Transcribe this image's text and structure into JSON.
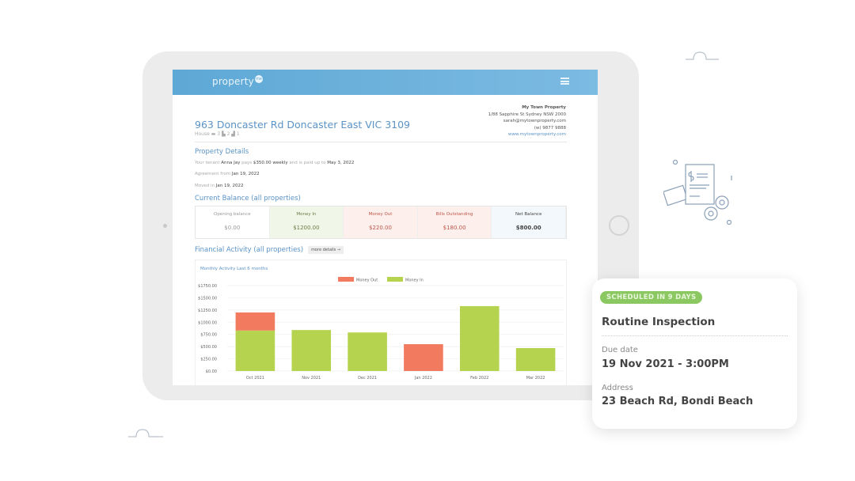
{
  "app": {
    "logo": "property",
    "logo_badge": "me"
  },
  "property": {
    "address": "963 Doncaster Rd Doncaster East VIC 3109",
    "type": "House",
    "beds": "3",
    "baths": "2",
    "cars": "1"
  },
  "agency": {
    "name": "My Town Property",
    "address": "1/88 Sapphire St Sydney NSW 2000",
    "email": "sarah@mytownproperty.com",
    "phone": "(w) 9877 9888",
    "website": "www.mytownproperty.com"
  },
  "details": {
    "heading": "Property Details",
    "t1": "Your tenant",
    "tenant": "Anna Jay",
    "t2": "pays",
    "rent": "$350.00 weekly",
    "t3": "and is paid up to",
    "paid_to": "May 3, 2022",
    "agreement_label": "Agreement from",
    "agreement": "Jan 19, 2022",
    "moved_label": "Moved in",
    "moved": "Jan 19, 2022"
  },
  "balance": {
    "heading": "Current Balance (all properties)",
    "cols": [
      {
        "label": "Opening balance",
        "value": "$0.00",
        "bg": "#ffffff",
        "color": "#999999"
      },
      {
        "label": "Money In",
        "value": "$1200.00",
        "bg": "#f1f7e8",
        "color": "#6b7a45"
      },
      {
        "label": "Money Out",
        "value": "$220.00",
        "bg": "#fcefec",
        "color": "#c0574a"
      },
      {
        "label": "Bills Outstanding",
        "value": "$180.00",
        "bg": "#fcefec",
        "color": "#c0574a"
      },
      {
        "label": "Net Balance",
        "value": "$800.00",
        "bg": "#f3f8fc",
        "color": "#444444"
      }
    ]
  },
  "activity": {
    "heading": "Financial Activity (all properties)",
    "more": "more details →"
  },
  "chart_data": {
    "type": "bar",
    "stacked": true,
    "title": "Monthly Activity Last 6 months",
    "categories": [
      "Oct 2021",
      "Nov 2021",
      "Dec 2021",
      "Jan 2022",
      "Feb 2022",
      "Mar 2022"
    ],
    "series": [
      {
        "name": "Money In",
        "color": "#b5d34e",
        "values": [
          830,
          840,
          790,
          0,
          1330,
          470
        ]
      },
      {
        "name": "Money Out",
        "color": "#f27a5e",
        "values": [
          370,
          0,
          0,
          550,
          0,
          0
        ]
      }
    ],
    "legend_order": [
      "Money Out",
      "Money In"
    ],
    "legend": "top",
    "yticks": [
      "$0.00",
      "$250.00",
      "$500.00",
      "$750.00",
      "$1000.00",
      "$1250.00",
      "$1500.00",
      "$1750.00"
    ],
    "ylim": [
      0,
      1750
    ],
    "grid": true
  },
  "card": {
    "badge": "SCHEDULED IN 9 DAYS",
    "title": "Routine Inspection",
    "due_label": "Due date",
    "due": "19 Nov 2021 - 3:00PM",
    "address_label": "Address",
    "address": "23 Beach Rd, Bondi Beach"
  }
}
